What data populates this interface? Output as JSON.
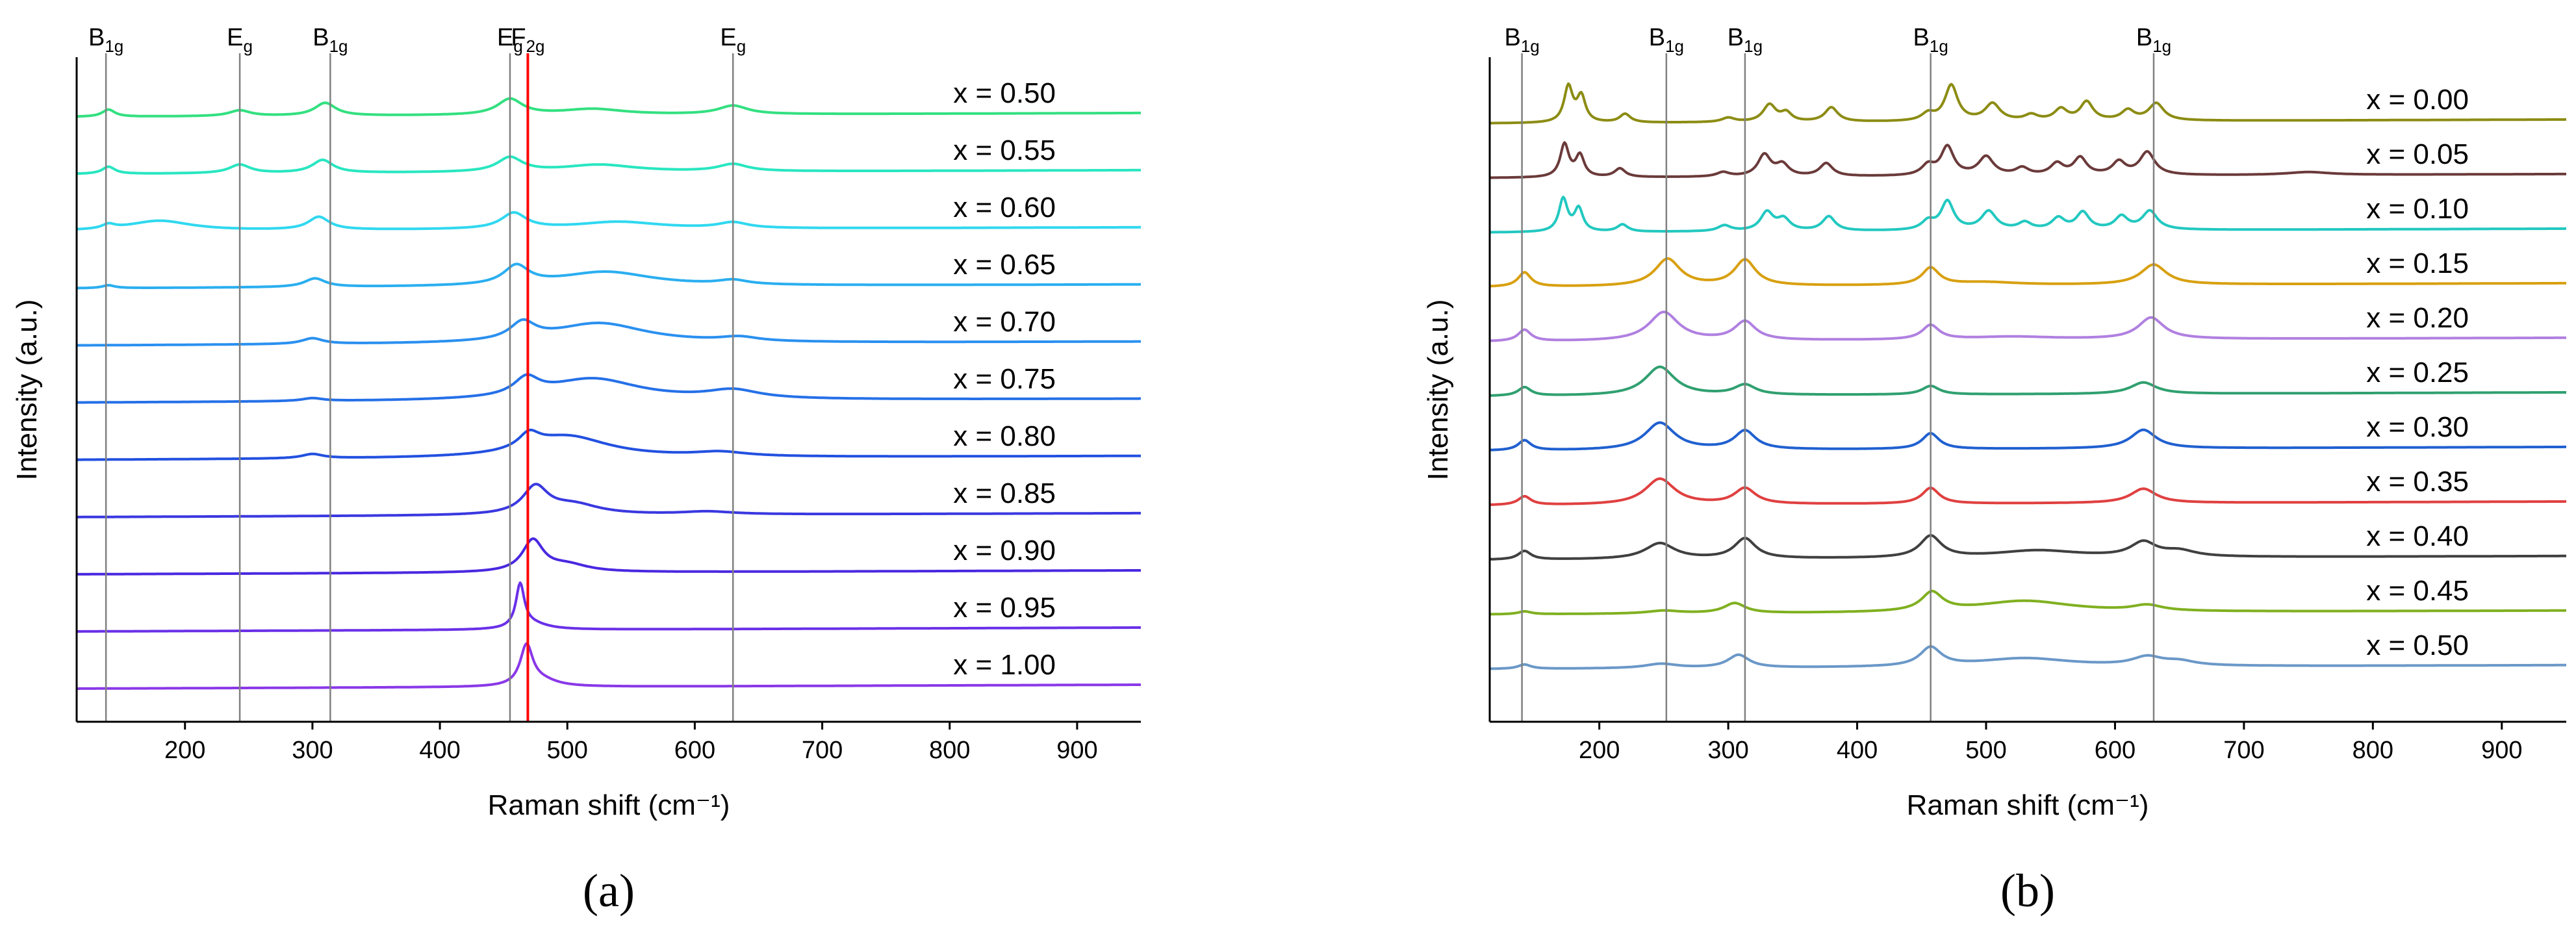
{
  "colors": {
    "axis": "#000000",
    "mode_line": "#808080",
    "highlight_line": "#ff0000"
  },
  "chart_data": [
    {
      "type": "line",
      "panel": "a",
      "panel_label": "(a)",
      "xlabel": "Raman shift (cm⁻¹)",
      "ylabel": "Intensity (a.u.)",
      "xlim": [
        115,
        950
      ],
      "xticks": [
        200,
        300,
        400,
        500,
        600,
        700,
        800,
        900
      ],
      "mode_lines": [
        {
          "x": 138,
          "label": "B",
          "sub": "1g",
          "color": "#808080"
        },
        {
          "x": 243,
          "label": "E",
          "sub": "g",
          "color": "#808080"
        },
        {
          "x": 314,
          "label": "B",
          "sub": "1g",
          "color": "#808080"
        },
        {
          "x": 455,
          "label": "E",
          "sub": "g",
          "color": "#808080"
        },
        {
          "x": 469,
          "label": "F",
          "sub": "2g",
          "color": "#ff0000"
        },
        {
          "x": 630,
          "label": "E",
          "sub": "g",
          "color": "#808080"
        }
      ],
      "series": [
        {
          "name": "x = 0.50",
          "color": "#33e080",
          "peaks": [
            [
              140,
              0.5,
              6
            ],
            [
              243,
              0.4,
              10
            ],
            [
              310,
              0.9,
              10
            ],
            [
              455,
              1.1,
              12
            ],
            [
              520,
              0.4,
              30
            ],
            [
              630,
              0.6,
              14
            ]
          ]
        },
        {
          "name": "x = 0.55",
          "color": "#28e6c0",
          "peaks": [
            [
              140,
              0.5,
              6
            ],
            [
              243,
              0.6,
              10
            ],
            [
              308,
              0.9,
              10
            ],
            [
              455,
              1.0,
              12
            ],
            [
              525,
              0.5,
              35
            ],
            [
              630,
              0.5,
              14
            ]
          ]
        },
        {
          "name": "x = 0.60",
          "color": "#30d8f0",
          "peaks": [
            [
              140,
              0.3,
              6
            ],
            [
              180,
              0.7,
              30
            ],
            [
              305,
              0.9,
              10
            ],
            [
              458,
              1.1,
              12
            ],
            [
              540,
              0.5,
              40
            ],
            [
              630,
              0.4,
              14
            ]
          ]
        },
        {
          "name": "x = 0.65",
          "color": "#2aaef0",
          "peaks": [
            [
              140,
              0.2,
              6
            ],
            [
              302,
              0.6,
              10
            ],
            [
              460,
              1.3,
              12
            ],
            [
              530,
              1.0,
              45
            ],
            [
              630,
              0.3,
              14
            ]
          ]
        },
        {
          "name": "x = 0.70",
          "color": "#2a90f0",
          "peaks": [
            [
              300,
              0.4,
              10
            ],
            [
              465,
              1.2,
              12
            ],
            [
              525,
              1.4,
              45
            ],
            [
              635,
              0.3,
              18
            ]
          ]
        },
        {
          "name": "x = 0.75",
          "color": "#2570e8",
          "peaks": [
            [
              300,
              0.2,
              10
            ],
            [
              468,
              1.2,
              12
            ],
            [
              520,
              1.5,
              45
            ],
            [
              630,
              0.6,
              25
            ]
          ]
        },
        {
          "name": "x = 0.80",
          "color": "#2250e0",
          "peaks": [
            [
              300,
              0.3,
              10
            ],
            [
              470,
              1.0,
              10
            ],
            [
              500,
              1.5,
              40
            ],
            [
              620,
              0.3,
              25
            ]
          ]
        },
        {
          "name": "x = 0.85",
          "color": "#3a38e0",
          "peaks": [
            [
              475,
              1.9,
              12
            ],
            [
              505,
              0.7,
              25
            ],
            [
              610,
              0.2,
              25
            ]
          ]
        },
        {
          "name": "x = 0.90",
          "color": "#4a28e0",
          "peaks": [
            [
              473,
              2.2,
              10
            ],
            [
              500,
              0.5,
              20
            ]
          ]
        },
        {
          "name": "x = 0.95",
          "color": "#6a30e8",
          "peaks": [
            [
              463,
              3.0,
              4
            ],
            [
              472,
              0.4,
              15
            ]
          ]
        },
        {
          "name": "x = 1.00",
          "color": "#8a38e8",
          "peaks": [
            [
              468,
              2.8,
              6
            ],
            [
              480,
              0.4,
              15
            ]
          ]
        }
      ]
    },
    {
      "type": "line",
      "panel": "b",
      "panel_label": "(b)",
      "xlabel": "Raman shift (cm⁻¹)",
      "ylabel": "Intensity (a.u.)",
      "xlim": [
        115,
        950
      ],
      "xticks": [
        200,
        300,
        400,
        500,
        600,
        700,
        800,
        900
      ],
      "mode_lines": [
        {
          "x": 140,
          "label": "B",
          "sub": "1g",
          "color": "#808080"
        },
        {
          "x": 252,
          "label": "B",
          "sub": "1g",
          "color": "#808080"
        },
        {
          "x": 313,
          "label": "B",
          "sub": "1g",
          "color": "#808080"
        },
        {
          "x": 457,
          "label": "B",
          "sub": "1g",
          "color": "#808080"
        },
        {
          "x": 630,
          "label": "B",
          "sub": "1g",
          "color": "#808080"
        }
      ],
      "series": [
        {
          "name": "x = 0.00",
          "color": "#8c8c14",
          "peaks": [
            [
              176,
              2.5,
              4
            ],
            [
              186,
              1.8,
              4
            ],
            [
              220,
              0.6,
              5
            ],
            [
              300,
              0.3,
              6
            ],
            [
              332,
              1.2,
              6
            ],
            [
              345,
              0.6,
              5
            ],
            [
              380,
              1.0,
              6
            ],
            [
              455,
              0.5,
              6
            ],
            [
              473,
              2.5,
              6
            ],
            [
              505,
              1.2,
              7
            ],
            [
              535,
              0.4,
              6
            ],
            [
              558,
              0.8,
              6
            ],
            [
              578,
              1.3,
              6
            ],
            [
              610,
              0.7,
              6
            ],
            [
              632,
              1.2,
              7
            ]
          ]
        },
        {
          "name": "x = 0.05",
          "color": "#6b3a3a",
          "peaks": [
            [
              173,
              2.3,
              4
            ],
            [
              185,
              1.5,
              4
            ],
            [
              216,
              0.6,
              5
            ],
            [
              296,
              0.3,
              6
            ],
            [
              328,
              1.5,
              6
            ],
            [
              342,
              0.8,
              6
            ],
            [
              376,
              0.9,
              6
            ],
            [
              455,
              0.7,
              6
            ],
            [
              470,
              2.0,
              6
            ],
            [
              500,
              1.3,
              7
            ],
            [
              528,
              0.5,
              6
            ],
            [
              555,
              0.8,
              6
            ],
            [
              573,
              1.2,
              6
            ],
            [
              603,
              0.9,
              6
            ],
            [
              625,
              1.6,
              7
            ],
            [
              750,
              0.2,
              20
            ]
          ]
        },
        {
          "name": "x = 0.10",
          "color": "#22c8c0",
          "peaks": [
            [
              172,
              2.3,
              4
            ],
            [
              184,
              1.6,
              4
            ],
            [
              218,
              0.5,
              5
            ],
            [
              297,
              0.4,
              6
            ],
            [
              330,
              1.3,
              6
            ],
            [
              343,
              0.8,
              6
            ],
            [
              378,
              1.0,
              6
            ],
            [
              455,
              0.6,
              6
            ],
            [
              470,
              2.0,
              6
            ],
            [
              502,
              1.3,
              7
            ],
            [
              530,
              0.5,
              6
            ],
            [
              556,
              0.8,
              6
            ],
            [
              575,
              1.2,
              6
            ],
            [
              605,
              0.9,
              6
            ],
            [
              627,
              1.3,
              7
            ]
          ]
        },
        {
          "name": "x = 0.15",
          "color": "#d8a010",
          "peaks": [
            [
              142,
              1.0,
              6
            ],
            [
              253,
              1.9,
              12
            ],
            [
              313,
              1.8,
              10
            ],
            [
              457,
              1.2,
              8
            ],
            [
              500,
              0.2,
              30
            ],
            [
              630,
              1.4,
              12
            ]
          ]
        },
        {
          "name": "x = 0.20",
          "color": "#b080e0",
          "peaks": [
            [
              142,
              0.8,
              6
            ],
            [
              250,
              2.0,
              14
            ],
            [
              313,
              1.3,
              10
            ],
            [
              457,
              1.0,
              8
            ],
            [
              520,
              0.2,
              40
            ],
            [
              628,
              1.5,
              12
            ]
          ]
        },
        {
          "name": "x = 0.25",
          "color": "#30a070",
          "peaks": [
            [
              142,
              0.6,
              6
            ],
            [
              247,
              2.0,
              14
            ],
            [
              313,
              0.7,
              10
            ],
            [
              457,
              0.6,
              8
            ],
            [
              622,
              0.8,
              12
            ]
          ]
        },
        {
          "name": "x = 0.30",
          "color": "#2060d0",
          "peaks": [
            [
              142,
              0.7,
              6
            ],
            [
              247,
              1.9,
              14
            ],
            [
              313,
              1.3,
              10
            ],
            [
              457,
              1.1,
              8
            ],
            [
              622,
              1.3,
              12
            ]
          ]
        },
        {
          "name": "x = 0.35",
          "color": "#e04040",
          "peaks": [
            [
              142,
              0.6,
              6
            ],
            [
              247,
              1.8,
              14
            ],
            [
              313,
              1.1,
              10
            ],
            [
              457,
              1.1,
              8
            ],
            [
              622,
              1.0,
              12
            ]
          ]
        },
        {
          "name": "x = 0.40",
          "color": "#404040",
          "peaks": [
            [
              142,
              0.6,
              6
            ],
            [
              247,
              1.1,
              14
            ],
            [
              313,
              1.4,
              10
            ],
            [
              457,
              1.5,
              10
            ],
            [
              540,
              0.5,
              40
            ],
            [
              622,
              1.0,
              12
            ],
            [
              650,
              0.4,
              15
            ]
          ]
        },
        {
          "name": "x = 0.45",
          "color": "#80b020",
          "peaks": [
            [
              142,
              0.2,
              6
            ],
            [
              250,
              0.2,
              15
            ],
            [
              305,
              0.7,
              10
            ],
            [
              458,
              1.3,
              10
            ],
            [
              530,
              0.8,
              45
            ],
            [
              625,
              0.4,
              14
            ]
          ]
        },
        {
          "name": "x = 0.50",
          "color": "#6a98c8",
          "peaks": [
            [
              142,
              0.3,
              6
            ],
            [
              248,
              0.3,
              15
            ],
            [
              308,
              0.9,
              10
            ],
            [
              457,
              1.3,
              10
            ],
            [
              530,
              0.6,
              45
            ],
            [
              625,
              0.6,
              14
            ],
            [
              650,
              0.3,
              15
            ]
          ]
        }
      ]
    }
  ]
}
